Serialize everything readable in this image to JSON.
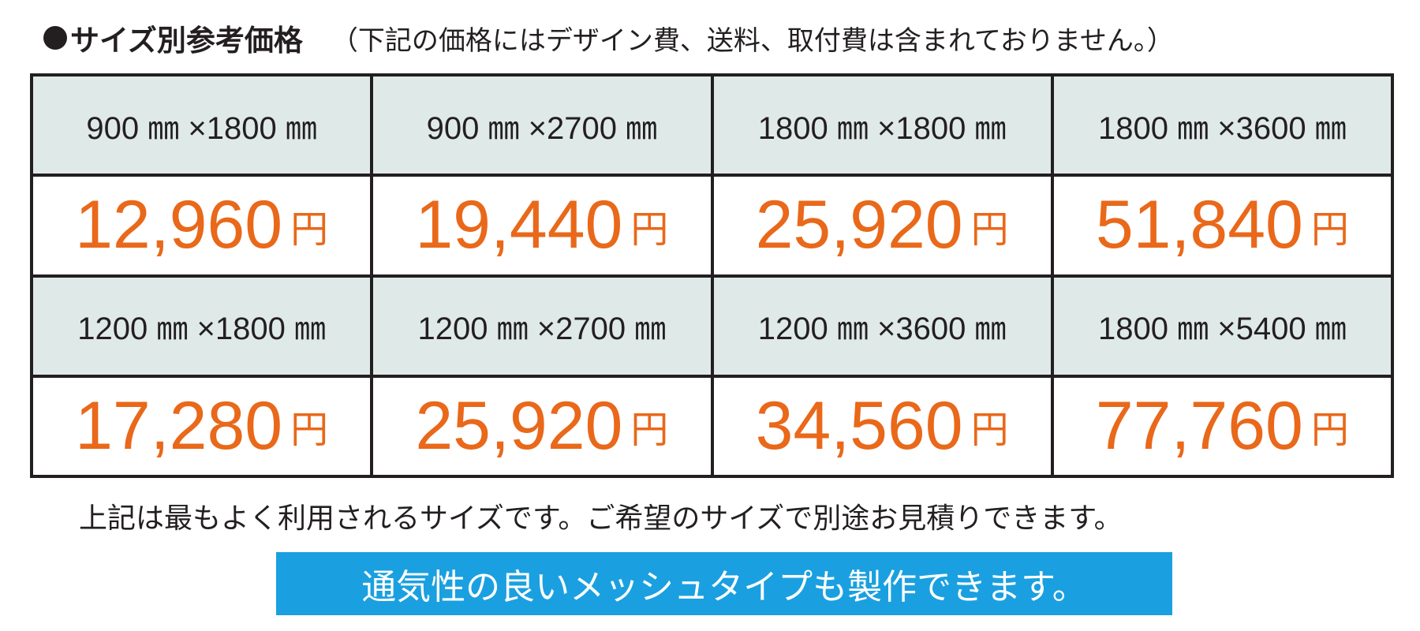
{
  "header": {
    "title": "サイズ別参考価格",
    "note": "（下記の価格にはデザイン費、送料、取付費は含まれておりません。）"
  },
  "table": {
    "rows": [
      {
        "sizes": [
          "900 ㎜ ×1800 ㎜",
          "900 ㎜ ×2700 ㎜",
          "1800 ㎜ ×1800 ㎜",
          "1800 ㎜ ×3600 ㎜"
        ],
        "prices": [
          "12,960",
          "19,440",
          "25,920",
          "51,840"
        ]
      },
      {
        "sizes": [
          "1200 ㎜ ×1800 ㎜",
          "1200 ㎜ ×2700 ㎜",
          "1200 ㎜ ×3600 ㎜",
          "1800 ㎜ ×5400 ㎜"
        ],
        "prices": [
          "17,280",
          "25,920",
          "34,560",
          "77,760"
        ]
      }
    ],
    "currency_unit": "円"
  },
  "footnote": "上記は最もよく利用されるサイズです。ご希望のサイズで別途お見積りできます。",
  "banner": "通気性の良いメッシュタイプも製作できます。",
  "colors": {
    "price": "#e9681a",
    "size_header_bg": "#dfe9e8",
    "banner_bg": "#1aa0e0",
    "border": "#231f20"
  }
}
